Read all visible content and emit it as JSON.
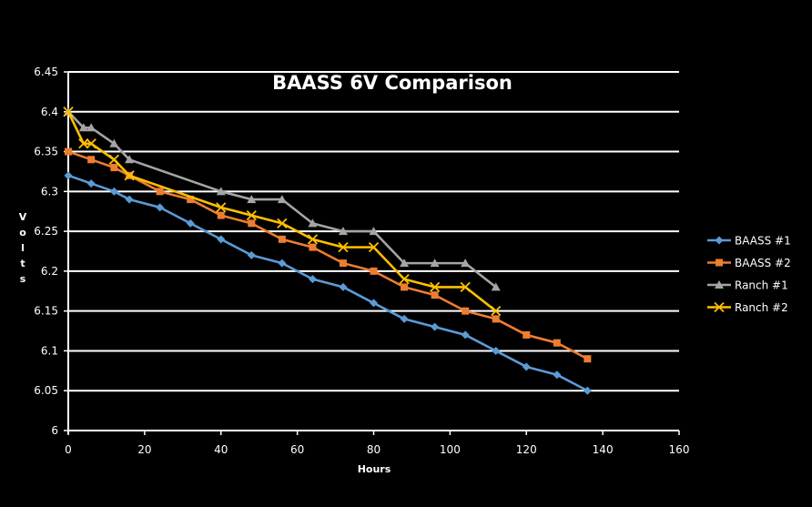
{
  "chart_data": {
    "type": "line",
    "title": "BAASS 6V Comparison",
    "xlabel": "Hours",
    "ylabel": "Volts",
    "ylabel_letters": [
      "V",
      "o",
      "l",
      "t",
      "s"
    ],
    "xlim": [
      0,
      160
    ],
    "ylim": [
      6,
      6.45
    ],
    "x_ticks": [
      "0",
      "20",
      "40",
      "60",
      "80",
      "100",
      "120",
      "140",
      "160"
    ],
    "y_ticks": [
      "6",
      "6.05",
      "6.1",
      "6.15",
      "6.2",
      "6.25",
      "6.3",
      "6.35",
      "6.4",
      "6.45"
    ],
    "grid": true,
    "legend_position": "right",
    "series": [
      {
        "name": "BAASS #1",
        "color": "#5B9BD5",
        "marker": "diamond",
        "x": [
          0,
          6,
          12,
          16,
          24,
          32,
          40,
          48,
          56,
          64,
          72,
          80,
          88,
          96,
          104,
          112,
          120,
          128,
          136
        ],
        "y": [
          6.32,
          6.31,
          6.3,
          6.29,
          6.28,
          6.26,
          6.24,
          6.22,
          6.21,
          6.19,
          6.18,
          6.16,
          6.14,
          6.13,
          6.12,
          6.1,
          6.08,
          6.07,
          6.05
        ]
      },
      {
        "name": "BAASS #2",
        "color": "#ED7D31",
        "marker": "square",
        "x": [
          0,
          6,
          12,
          16,
          24,
          32,
          40,
          48,
          56,
          64,
          72,
          80,
          88,
          96,
          104,
          112,
          120,
          128,
          136
        ],
        "y": [
          6.35,
          6.34,
          6.33,
          6.32,
          6.3,
          6.29,
          6.27,
          6.26,
          6.24,
          6.23,
          6.21,
          6.2,
          6.18,
          6.17,
          6.15,
          6.14,
          6.12,
          6.11,
          6.09
        ]
      },
      {
        "name": "Ranch #1",
        "color": "#A5A5A5",
        "marker": "triangle",
        "x": [
          0,
          4,
          6,
          12,
          16,
          40,
          48,
          56,
          64,
          72,
          80,
          88,
          96,
          104,
          112
        ],
        "y": [
          6.4,
          6.38,
          6.38,
          6.36,
          6.34,
          6.3,
          6.29,
          6.29,
          6.26,
          6.25,
          6.25,
          6.21,
          6.21,
          6.21,
          6.18
        ]
      },
      {
        "name": "Ranch #2",
        "color": "#FFC000",
        "marker": "x",
        "x": [
          0,
          4,
          6,
          12,
          16,
          40,
          48,
          56,
          64,
          72,
          80,
          88,
          96,
          104,
          112
        ],
        "y": [
          6.4,
          6.36,
          6.36,
          6.34,
          6.32,
          6.28,
          6.27,
          6.26,
          6.24,
          6.23,
          6.23,
          6.19,
          6.18,
          6.18,
          6.15
        ]
      }
    ]
  }
}
